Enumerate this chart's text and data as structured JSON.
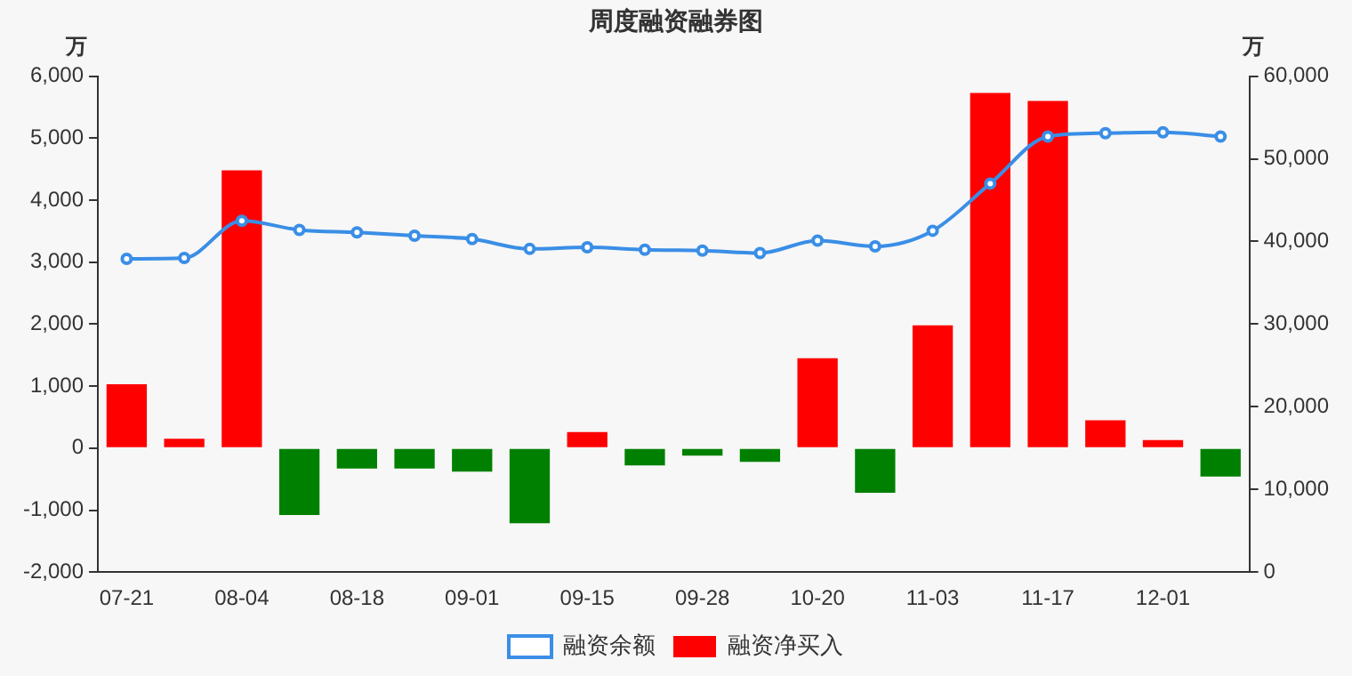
{
  "chart_data": {
    "type": "bar",
    "title": "周度融资融券图",
    "ylabel": "万",
    "y2label": "万",
    "categories": [
      "07-21",
      null,
      "08-04",
      null,
      "08-18",
      null,
      "09-01",
      null,
      "09-15",
      null,
      "09-28",
      null,
      "10-20",
      null,
      "11-03",
      null,
      "11-17",
      null,
      "12-01",
      null
    ],
    "series": [
      {
        "name": "融资余额",
        "type": "line",
        "axis": "y2",
        "color": "#3a8ee6",
        "marker": "circle",
        "values": [
          37900,
          38000,
          42500,
          41400,
          41100,
          40700,
          40300,
          39100,
          39300,
          39000,
          38900,
          38600,
          40100,
          39400,
          41300,
          47000,
          52700,
          53100,
          53200,
          52700
        ]
      },
      {
        "name": "融资净买入",
        "color": "#ff0000",
        "colors": [
          "#ff0000",
          "#ff0000",
          "#ff0000",
          "#008000",
          "#008000",
          "#008000",
          "#008000",
          "#008000",
          "#ff0000",
          "#008000",
          "#008000",
          "#008000",
          "#ff0000",
          "#008000",
          "#ff0000",
          "#ff0000",
          "#ff0000",
          "#ff0000",
          "#ff0000",
          "#008000"
        ],
        "values": [
          1030,
          150,
          4480,
          -1080,
          -330,
          -330,
          -380,
          -1210,
          260,
          -280,
          -120,
          -220,
          1450,
          -720,
          1980,
          5730,
          5600,
          450,
          130,
          -460
        ]
      }
    ],
    "ylim": [
      -2000,
      6000
    ],
    "yticks": [
      {
        "value": -2000,
        "label": "-2,000"
      },
      {
        "value": -1000,
        "label": "-1,000"
      },
      0,
      {
        "value": 1000,
        "label": "1,000"
      },
      {
        "value": 2000,
        "label": "2,000"
      },
      {
        "value": 3000,
        "label": "3,000"
      },
      {
        "value": 4000,
        "label": "4,000"
      },
      {
        "value": 5000,
        "label": "5,000"
      },
      {
        "value": 6000,
        "label": "6,000"
      }
    ],
    "y2lim": [
      0,
      60000
    ],
    "y2ticks": [
      0,
      {
        "value": 10000,
        "label": "10,000"
      },
      {
        "value": 20000,
        "label": "20,000"
      },
      {
        "value": 30000,
        "label": "30,000"
      },
      {
        "value": 40000,
        "label": "40,000"
      },
      {
        "value": 50000,
        "label": "50,000"
      },
      {
        "value": 60000,
        "label": "60,000"
      }
    ],
    "legend": "bottom",
    "grid": false
  }
}
